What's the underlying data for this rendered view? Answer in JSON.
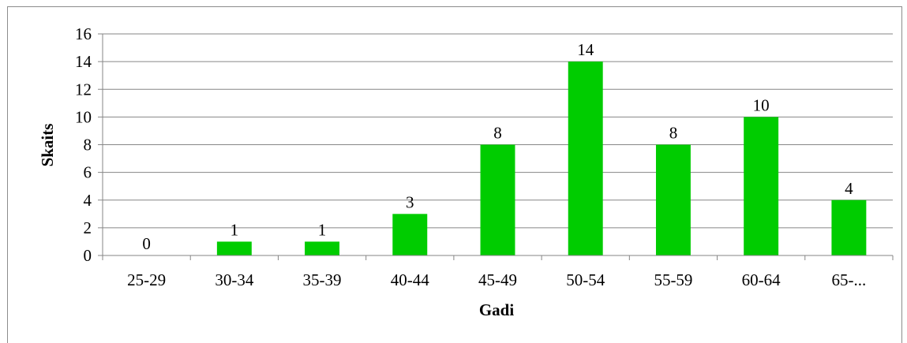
{
  "chart_data": {
    "type": "bar",
    "title": "",
    "xlabel": "Gadi",
    "ylabel": "Skaits",
    "categories": [
      "25-29",
      "30-34",
      "35-39",
      "40-44",
      "45-49",
      "50-54",
      "55-59",
      "60-64",
      "65-..."
    ],
    "values": [
      0,
      1,
      1,
      3,
      8,
      14,
      8,
      10,
      4
    ],
    "ylim": [
      0,
      16
    ],
    "yticks": [
      0,
      2,
      4,
      6,
      8,
      10,
      12,
      14,
      16
    ],
    "grid": true,
    "legend": "none",
    "bar_color": "#00cc00",
    "gridline_color": "#868686"
  }
}
